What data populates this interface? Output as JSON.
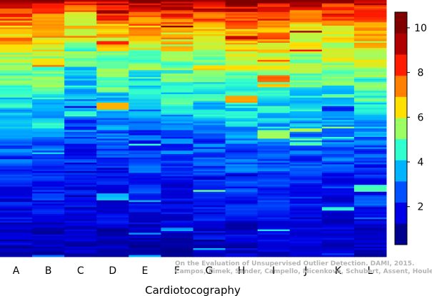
{
  "chart_data": {
    "type": "heatmap",
    "title": "",
    "xlabel": "Cardiotocography",
    "ylabel": "",
    "columns": [
      "A",
      "B",
      "C",
      "D",
      "E",
      "F",
      "G",
      "H",
      "I",
      "J",
      "K",
      "L"
    ],
    "colorbar": {
      "min": 0.3,
      "max": 10.7,
      "ticks": [
        2,
        4,
        6,
        8,
        10
      ],
      "colors": [
        "#00008f",
        "#0000e6",
        "#0050ff",
        "#00b4ff",
        "#30ffcf",
        "#9bff64",
        "#ffe000",
        "#ff8000",
        "#ff1c00",
        "#b00000",
        "#800000"
      ]
    },
    "column_profiles": [
      {
        "column": "A",
        "top_score": 10.0,
        "median_score": 3.2,
        "floor_score": 0.7
      },
      {
        "column": "B",
        "top_score": 10.0,
        "median_score": 3.2,
        "floor_score": 0.7
      },
      {
        "column": "C",
        "top_score": 9.0,
        "median_score": 2.3,
        "floor_score": 0.7
      },
      {
        "column": "D",
        "top_score": 10.5,
        "median_score": 2.8,
        "floor_score": 0.8
      },
      {
        "column": "E",
        "top_score": 10.7,
        "median_score": 2.4,
        "floor_score": 0.7
      },
      {
        "column": "F",
        "top_score": 10.5,
        "median_score": 2.8,
        "floor_score": 0.7
      },
      {
        "column": "G",
        "top_score": 10.5,
        "median_score": 2.9,
        "floor_score": 0.8
      },
      {
        "column": "H",
        "top_score": 10.5,
        "median_score": 3.4,
        "floor_score": 0.9
      },
      {
        "column": "I",
        "top_score": 10.5,
        "median_score": 3.5,
        "floor_score": 1.0
      },
      {
        "column": "J",
        "top_score": 10.0,
        "median_score": 3.2,
        "floor_score": 0.9
      },
      {
        "column": "K",
        "top_score": 10.0,
        "median_score": 3.0,
        "floor_score": 0.8
      },
      {
        "column": "L",
        "top_score": 10.5,
        "median_score": 3.1,
        "floor_score": 0.8
      }
    ],
    "legend": "right",
    "grid": false
  },
  "credit": {
    "line1": "On the Evaluation of Unsupervised Outlier Detection. DAMI, 2015.",
    "line2": "Campos, Zimek, Sander, Campello, Micenková, Schubert, Assent, Houle"
  }
}
